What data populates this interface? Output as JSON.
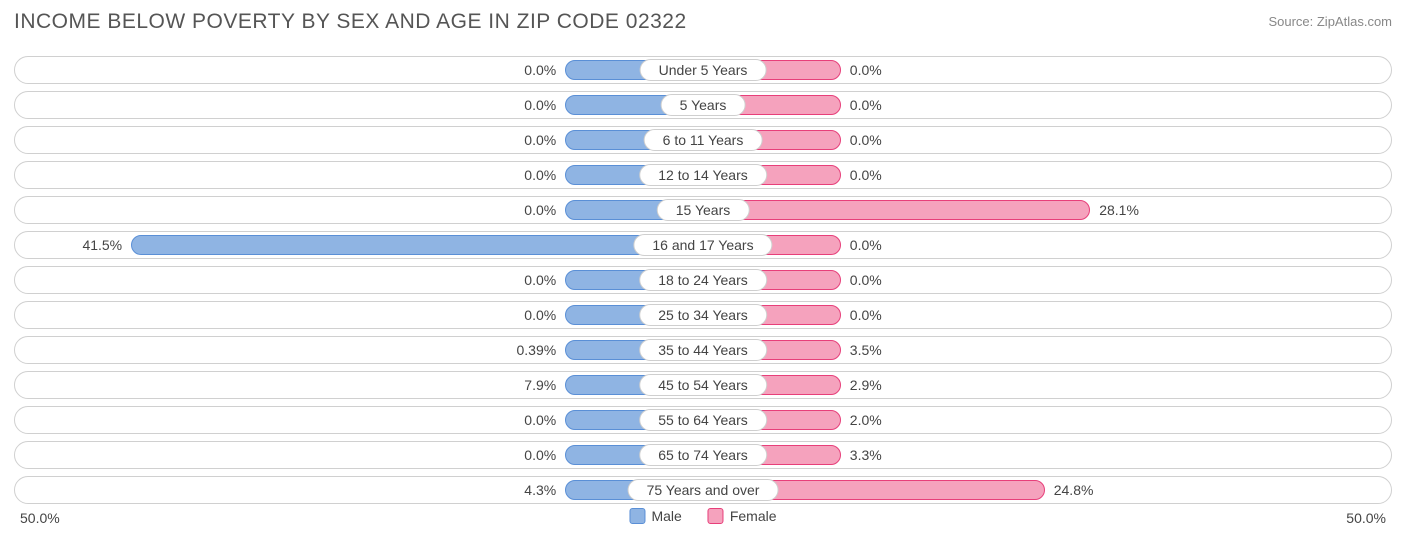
{
  "title": "INCOME BELOW POVERTY BY SEX AND AGE IN ZIP CODE 02322",
  "source": "Source: ZipAtlas.com",
  "chart": {
    "type": "diverging-bar",
    "axis_max_percent": 50.0,
    "min_bar_percent": 10.0,
    "axis_label_left": "50.0%",
    "axis_label_right": "50.0%",
    "track_border_color": "#d0d0d0",
    "track_bg_color": "#ffffff",
    "label_color": "#444444",
    "label_fontsize": 14,
    "male": {
      "fill": "#8fb4e3",
      "stroke": "#5a8fd6",
      "legend": "Male"
    },
    "female": {
      "fill": "#f5a2bd",
      "stroke": "#e73f7a",
      "legend": "Female"
    },
    "rows": [
      {
        "category": "Under 5 Years",
        "male_pct": 0.0,
        "male_label": "0.0%",
        "female_pct": 0.0,
        "female_label": "0.0%"
      },
      {
        "category": "5 Years",
        "male_pct": 0.0,
        "male_label": "0.0%",
        "female_pct": 0.0,
        "female_label": "0.0%"
      },
      {
        "category": "6 to 11 Years",
        "male_pct": 0.0,
        "male_label": "0.0%",
        "female_pct": 0.0,
        "female_label": "0.0%"
      },
      {
        "category": "12 to 14 Years",
        "male_pct": 0.0,
        "male_label": "0.0%",
        "female_pct": 0.0,
        "female_label": "0.0%"
      },
      {
        "category": "15 Years",
        "male_pct": 0.0,
        "male_label": "0.0%",
        "female_pct": 28.1,
        "female_label": "28.1%"
      },
      {
        "category": "16 and 17 Years",
        "male_pct": 41.5,
        "male_label": "41.5%",
        "female_pct": 0.0,
        "female_label": "0.0%"
      },
      {
        "category": "18 to 24 Years",
        "male_pct": 0.0,
        "male_label": "0.0%",
        "female_pct": 0.0,
        "female_label": "0.0%"
      },
      {
        "category": "25 to 34 Years",
        "male_pct": 0.0,
        "male_label": "0.0%",
        "female_pct": 0.0,
        "female_label": "0.0%"
      },
      {
        "category": "35 to 44 Years",
        "male_pct": 0.39,
        "male_label": "0.39%",
        "female_pct": 3.5,
        "female_label": "3.5%"
      },
      {
        "category": "45 to 54 Years",
        "male_pct": 7.9,
        "male_label": "7.9%",
        "female_pct": 2.9,
        "female_label": "2.9%"
      },
      {
        "category": "55 to 64 Years",
        "male_pct": 0.0,
        "male_label": "0.0%",
        "female_pct": 2.0,
        "female_label": "2.0%"
      },
      {
        "category": "65 to 74 Years",
        "male_pct": 0.0,
        "male_label": "0.0%",
        "female_pct": 3.3,
        "female_label": "3.3%"
      },
      {
        "category": "75 Years and over",
        "male_pct": 4.3,
        "male_label": "4.3%",
        "female_pct": 24.8,
        "female_label": "24.8%"
      }
    ]
  }
}
